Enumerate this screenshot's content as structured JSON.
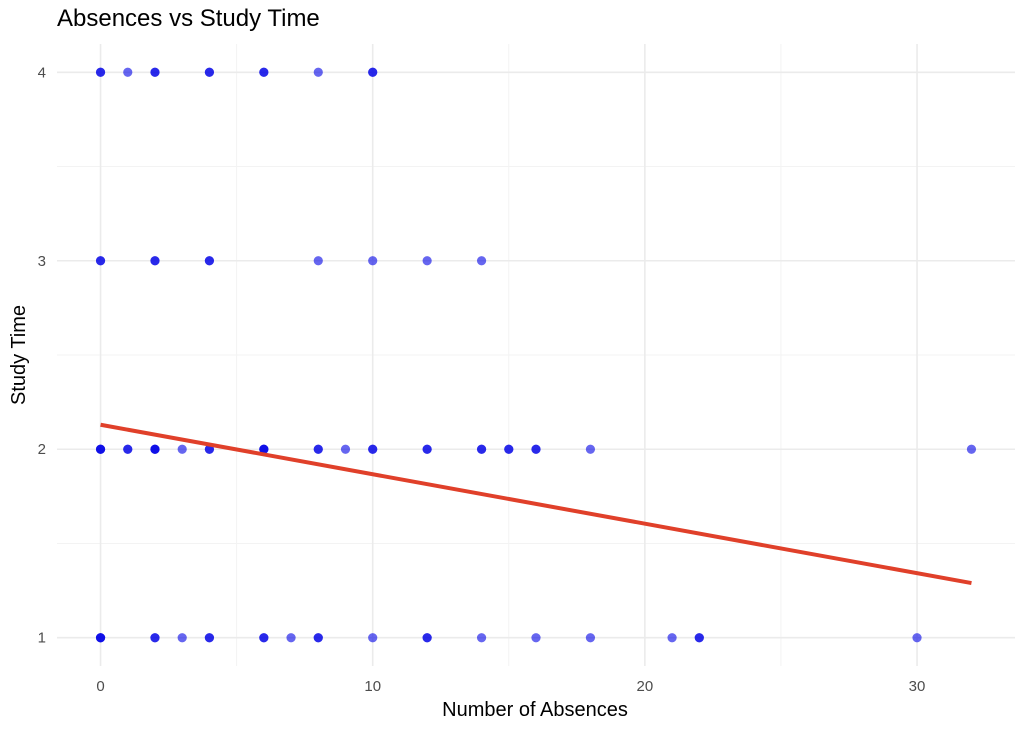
{
  "chart_data": {
    "type": "scatter",
    "title": "Absences vs Study Time",
    "xlabel": "Number of Absences",
    "ylabel": "Study Time",
    "xlim": [
      -1.6,
      33.6
    ],
    "ylim": [
      0.85,
      4.15
    ],
    "x_ticks": [
      0,
      10,
      20,
      30
    ],
    "y_ticks": [
      1,
      2,
      3,
      4
    ],
    "grid": true,
    "legend": "none",
    "point_color": "#0000e6",
    "point_alpha": 0.6,
    "line_color": "#e0402a",
    "points": [
      {
        "x": 0,
        "y": 4
      },
      {
        "x": 0,
        "y": 4
      },
      {
        "x": 1,
        "y": 4
      },
      {
        "x": 2,
        "y": 4
      },
      {
        "x": 2,
        "y": 4
      },
      {
        "x": 4,
        "y": 4
      },
      {
        "x": 4,
        "y": 4
      },
      {
        "x": 6,
        "y": 4
      },
      {
        "x": 6,
        "y": 4
      },
      {
        "x": 8,
        "y": 4
      },
      {
        "x": 10,
        "y": 4
      },
      {
        "x": 10,
        "y": 4
      },
      {
        "x": 0,
        "y": 3
      },
      {
        "x": 0,
        "y": 3
      },
      {
        "x": 2,
        "y": 3
      },
      {
        "x": 2,
        "y": 3
      },
      {
        "x": 4,
        "y": 3
      },
      {
        "x": 4,
        "y": 3
      },
      {
        "x": 8,
        "y": 3
      },
      {
        "x": 10,
        "y": 3
      },
      {
        "x": 12,
        "y": 3
      },
      {
        "x": 14,
        "y": 3
      },
      {
        "x": 0,
        "y": 2
      },
      {
        "x": 0,
        "y": 2
      },
      {
        "x": 0,
        "y": 2
      },
      {
        "x": 1,
        "y": 2
      },
      {
        "x": 1,
        "y": 2
      },
      {
        "x": 2,
        "y": 2
      },
      {
        "x": 2,
        "y": 2
      },
      {
        "x": 2,
        "y": 2
      },
      {
        "x": 3,
        "y": 2
      },
      {
        "x": 4,
        "y": 2
      },
      {
        "x": 4,
        "y": 2
      },
      {
        "x": 6,
        "y": 2
      },
      {
        "x": 6,
        "y": 2
      },
      {
        "x": 6,
        "y": 2
      },
      {
        "x": 8,
        "y": 2
      },
      {
        "x": 8,
        "y": 2
      },
      {
        "x": 9,
        "y": 2
      },
      {
        "x": 10,
        "y": 2
      },
      {
        "x": 10,
        "y": 2
      },
      {
        "x": 12,
        "y": 2
      },
      {
        "x": 12,
        "y": 2
      },
      {
        "x": 14,
        "y": 2
      },
      {
        "x": 14,
        "y": 2
      },
      {
        "x": 15,
        "y": 2
      },
      {
        "x": 15,
        "y": 2
      },
      {
        "x": 16,
        "y": 2
      },
      {
        "x": 16,
        "y": 2
      },
      {
        "x": 18,
        "y": 2
      },
      {
        "x": 32,
        "y": 2
      },
      {
        "x": 0,
        "y": 1
      },
      {
        "x": 0,
        "y": 1
      },
      {
        "x": 0,
        "y": 1
      },
      {
        "x": 2,
        "y": 1
      },
      {
        "x": 2,
        "y": 1
      },
      {
        "x": 3,
        "y": 1
      },
      {
        "x": 4,
        "y": 1
      },
      {
        "x": 4,
        "y": 1
      },
      {
        "x": 6,
        "y": 1
      },
      {
        "x": 6,
        "y": 1
      },
      {
        "x": 7,
        "y": 1
      },
      {
        "x": 8,
        "y": 1
      },
      {
        "x": 8,
        "y": 1
      },
      {
        "x": 10,
        "y": 1
      },
      {
        "x": 12,
        "y": 1
      },
      {
        "x": 12,
        "y": 1
      },
      {
        "x": 14,
        "y": 1
      },
      {
        "x": 16,
        "y": 1
      },
      {
        "x": 18,
        "y": 1
      },
      {
        "x": 21,
        "y": 1
      },
      {
        "x": 22,
        "y": 1
      },
      {
        "x": 22,
        "y": 1
      },
      {
        "x": 30,
        "y": 1
      }
    ],
    "trend_line": {
      "type": "linear regression",
      "x": [
        0,
        32
      ],
      "y": [
        2.13,
        1.29
      ]
    }
  }
}
